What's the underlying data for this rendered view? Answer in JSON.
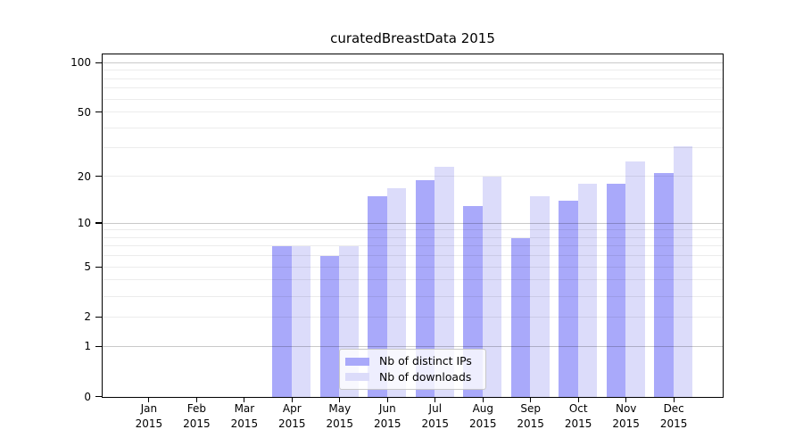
{
  "title": "curatedBreastData 2015",
  "colors": {
    "bar_distinct_ips": "#a9a9fa",
    "bar_downloads": "#dcdcfa",
    "grid_major": "rgba(0,0,0,0.21)",
    "grid_minor": "rgba(0,0,0,0.075)",
    "axis": "#000000",
    "legend_border": "#c9c9c9"
  },
  "chart_data": {
    "type": "bar",
    "title": "curatedBreastData 2015",
    "categories": [
      "Jan",
      "Feb",
      "Mar",
      "Apr",
      "May",
      "Jun",
      "Jul",
      "Aug",
      "Sep",
      "Oct",
      "Nov",
      "Dec"
    ],
    "category_year": "2015",
    "series": [
      {
        "name": "Nb of distinct IPs",
        "color": "#a9a9fa",
        "values": [
          0,
          0,
          0,
          7,
          6,
          15,
          19,
          13,
          8,
          14,
          18,
          21
        ]
      },
      {
        "name": "Nb of downloads",
        "color": "#dcdcfa",
        "values": [
          0,
          0,
          0,
          7,
          7,
          17,
          23,
          20,
          15,
          18,
          25,
          31
        ]
      }
    ],
    "y_axis": {
      "scale": "log(1+y)",
      "tick_values": [
        0,
        1,
        2,
        5,
        10,
        20,
        50,
        100
      ],
      "tick_labels": [
        "0",
        "1",
        "2",
        "5",
        "10",
        "20",
        "50",
        "100"
      ],
      "major_gridlines": [
        1,
        10,
        100
      ],
      "minor_gridlines": [
        2,
        3,
        4,
        5,
        6,
        7,
        8,
        9,
        20,
        30,
        40,
        50,
        60,
        70,
        80,
        90
      ],
      "ylim": [
        0,
        115
      ]
    },
    "xlabel": "",
    "ylabel": "",
    "grid": true,
    "legend_position": "lower center"
  }
}
